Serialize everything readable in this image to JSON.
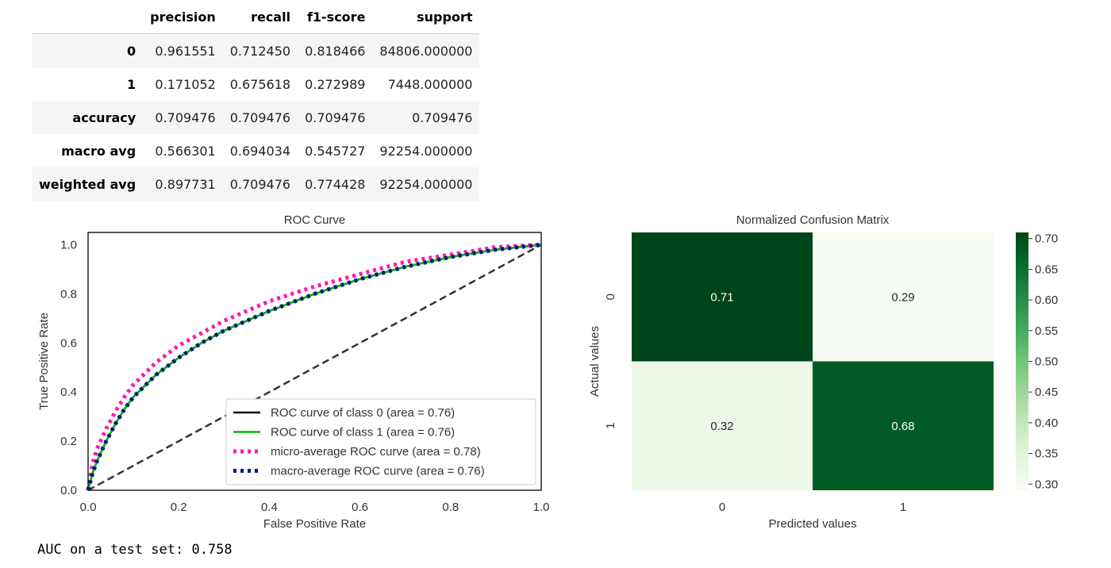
{
  "report": {
    "columns": [
      "",
      "precision",
      "recall",
      "f1-score",
      "support"
    ],
    "rows": [
      {
        "label": "0",
        "values": [
          "0.961551",
          "0.712450",
          "0.818466",
          "84806.000000"
        ]
      },
      {
        "label": "1",
        "values": [
          "0.171052",
          "0.675618",
          "0.272989",
          "7448.000000"
        ]
      },
      {
        "label": "accuracy",
        "values": [
          "0.709476",
          "0.709476",
          "0.709476",
          "0.709476"
        ]
      },
      {
        "label": "macro avg",
        "values": [
          "0.566301",
          "0.694034",
          "0.545727",
          "92254.000000"
        ]
      },
      {
        "label": "weighted avg",
        "values": [
          "0.897731",
          "0.709476",
          "0.774428",
          "92254.000000"
        ]
      }
    ]
  },
  "auc_text": "AUC on a test set: 0.758",
  "chart_data": [
    {
      "type": "line",
      "title": "ROC Curve",
      "xlabel": "False Positive Rate",
      "ylabel": "True Positive Rate",
      "xlim": [
        0,
        1
      ],
      "ylim": [
        0,
        1.05
      ],
      "xticks": [
        "0.0",
        "0.2",
        "0.4",
        "0.6",
        "0.8",
        "1.0"
      ],
      "yticks": [
        "0.0",
        "0.2",
        "0.4",
        "0.6",
        "0.8",
        "1.0"
      ],
      "grid": false,
      "legend_position": "lower-right",
      "x": [
        0,
        0.01,
        0.02,
        0.04,
        0.06,
        0.08,
        0.1,
        0.15,
        0.2,
        0.25,
        0.3,
        0.4,
        0.5,
        0.6,
        0.7,
        0.8,
        0.9,
        1.0
      ],
      "series": [
        {
          "name": "ROC curve of class 0 (area = 0.76)",
          "color": "#000000",
          "style": "solid",
          "values": [
            0,
            0.07,
            0.12,
            0.2,
            0.27,
            0.33,
            0.38,
            0.47,
            0.54,
            0.6,
            0.65,
            0.73,
            0.8,
            0.86,
            0.91,
            0.95,
            0.98,
            1.0
          ]
        },
        {
          "name": "ROC curve of class 1 (area = 0.76)",
          "color": "#00bb00",
          "style": "solid",
          "values": [
            0,
            0.07,
            0.12,
            0.2,
            0.27,
            0.33,
            0.38,
            0.47,
            0.54,
            0.6,
            0.65,
            0.73,
            0.8,
            0.86,
            0.91,
            0.95,
            0.98,
            1.0
          ]
        },
        {
          "name": "micro-average ROC curve (area = 0.78)",
          "color": "#ff1aa8",
          "style": "dotted",
          "values": [
            0,
            0.11,
            0.17,
            0.25,
            0.32,
            0.38,
            0.43,
            0.52,
            0.59,
            0.64,
            0.69,
            0.77,
            0.83,
            0.88,
            0.93,
            0.96,
            0.99,
            1.0
          ]
        },
        {
          "name": "macro-average ROC curve (area = 0.76)",
          "color": "#001a80",
          "style": "dotted",
          "values": [
            0,
            0.07,
            0.12,
            0.2,
            0.27,
            0.33,
            0.38,
            0.47,
            0.54,
            0.6,
            0.65,
            0.73,
            0.8,
            0.86,
            0.91,
            0.95,
            0.98,
            1.0
          ]
        },
        {
          "name": "",
          "color": "#333333",
          "style": "dashed",
          "values": [
            0,
            0.01,
            0.02,
            0.04,
            0.06,
            0.08,
            0.1,
            0.15,
            0.2,
            0.25,
            0.3,
            0.4,
            0.5,
            0.6,
            0.7,
            0.8,
            0.9,
            1.0
          ]
        }
      ]
    },
    {
      "type": "heatmap",
      "title": "Normalized Confusion Matrix",
      "xlabel": "Predicted values",
      "ylabel": "Actual values",
      "x_categories": [
        "0",
        "1"
      ],
      "y_categories": [
        "0",
        "1"
      ],
      "values": [
        [
          0.71,
          0.29
        ],
        [
          0.32,
          0.68
        ]
      ],
      "colormap": "Greens",
      "colorbar_range": [
        0.29,
        0.71
      ],
      "colorbar_ticks": [
        "0.30",
        "0.35",
        "0.40",
        "0.45",
        "0.50",
        "0.55",
        "0.60",
        "0.65",
        "0.70"
      ]
    }
  ]
}
